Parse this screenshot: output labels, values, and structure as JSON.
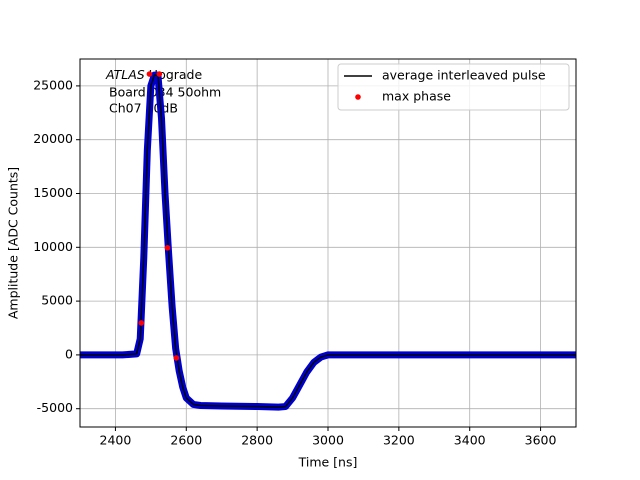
{
  "chart_data": {
    "type": "line",
    "x_label": "Time [ns]",
    "y_label": "Amplitude [ADC Counts]",
    "annotation": {
      "italic": "ATLAS",
      "text": "Upgrade",
      "lines": [
        "Board 034 50ohm",
        "Ch07 30dB"
      ]
    },
    "xlim": [
      2300,
      3700
    ],
    "xticks": [
      2400,
      2600,
      2800,
      3000,
      3200,
      3400,
      3600
    ],
    "ylim": [
      -6700,
      27500
    ],
    "yticks": [
      -5000,
      0,
      5000,
      10000,
      15000,
      20000,
      25000
    ],
    "grid": true,
    "legend": "upper right",
    "x": [
      2300,
      2340,
      2380,
      2420,
      2460,
      2470,
      2480,
      2490,
      2500,
      2510,
      2520,
      2530,
      2540,
      2550,
      2560,
      2570,
      2580,
      2590,
      2600,
      2620,
      2640,
      2700,
      2800,
      2860,
      2880,
      2900,
      2920,
      2940,
      2960,
      2980,
      3000,
      3100,
      3200,
      3300,
      3400,
      3500,
      3600,
      3700
    ],
    "series": [
      {
        "color": "#0000cc",
        "values": [
          0,
          0,
          0,
          0,
          100,
          1500,
          9000,
          19000,
          25000,
          26000,
          26000,
          22000,
          15000,
          9500,
          4500,
          600,
          -1500,
          -3000,
          -4000,
          -4600,
          -4700,
          -4750,
          -4800,
          -4850,
          -4800,
          -4000,
          -2800,
          -1600,
          -700,
          -200,
          0,
          0,
          0,
          0,
          0,
          0,
          0,
          0
        ]
      },
      {
        "name": "average interleaved pulse",
        "color": "#000000",
        "values": [
          0,
          0,
          0,
          0,
          100,
          1500,
          9000,
          19000,
          25000,
          26000,
          26000,
          22000,
          15000,
          9500,
          4500,
          600,
          -1500,
          -3000,
          -4000,
          -4600,
          -4700,
          -4750,
          -4800,
          -4850,
          -4800,
          -4000,
          -2800,
          -1600,
          -700,
          -200,
          0,
          0,
          0,
          0,
          0,
          0,
          0,
          0
        ]
      }
    ],
    "points": {
      "name": "max phase",
      "color": "#ff0000",
      "x": [
        2473,
        2496,
        2524,
        2547,
        2572
      ],
      "values": [
        2970,
        26100,
        26100,
        9950,
        -280
      ]
    }
  }
}
